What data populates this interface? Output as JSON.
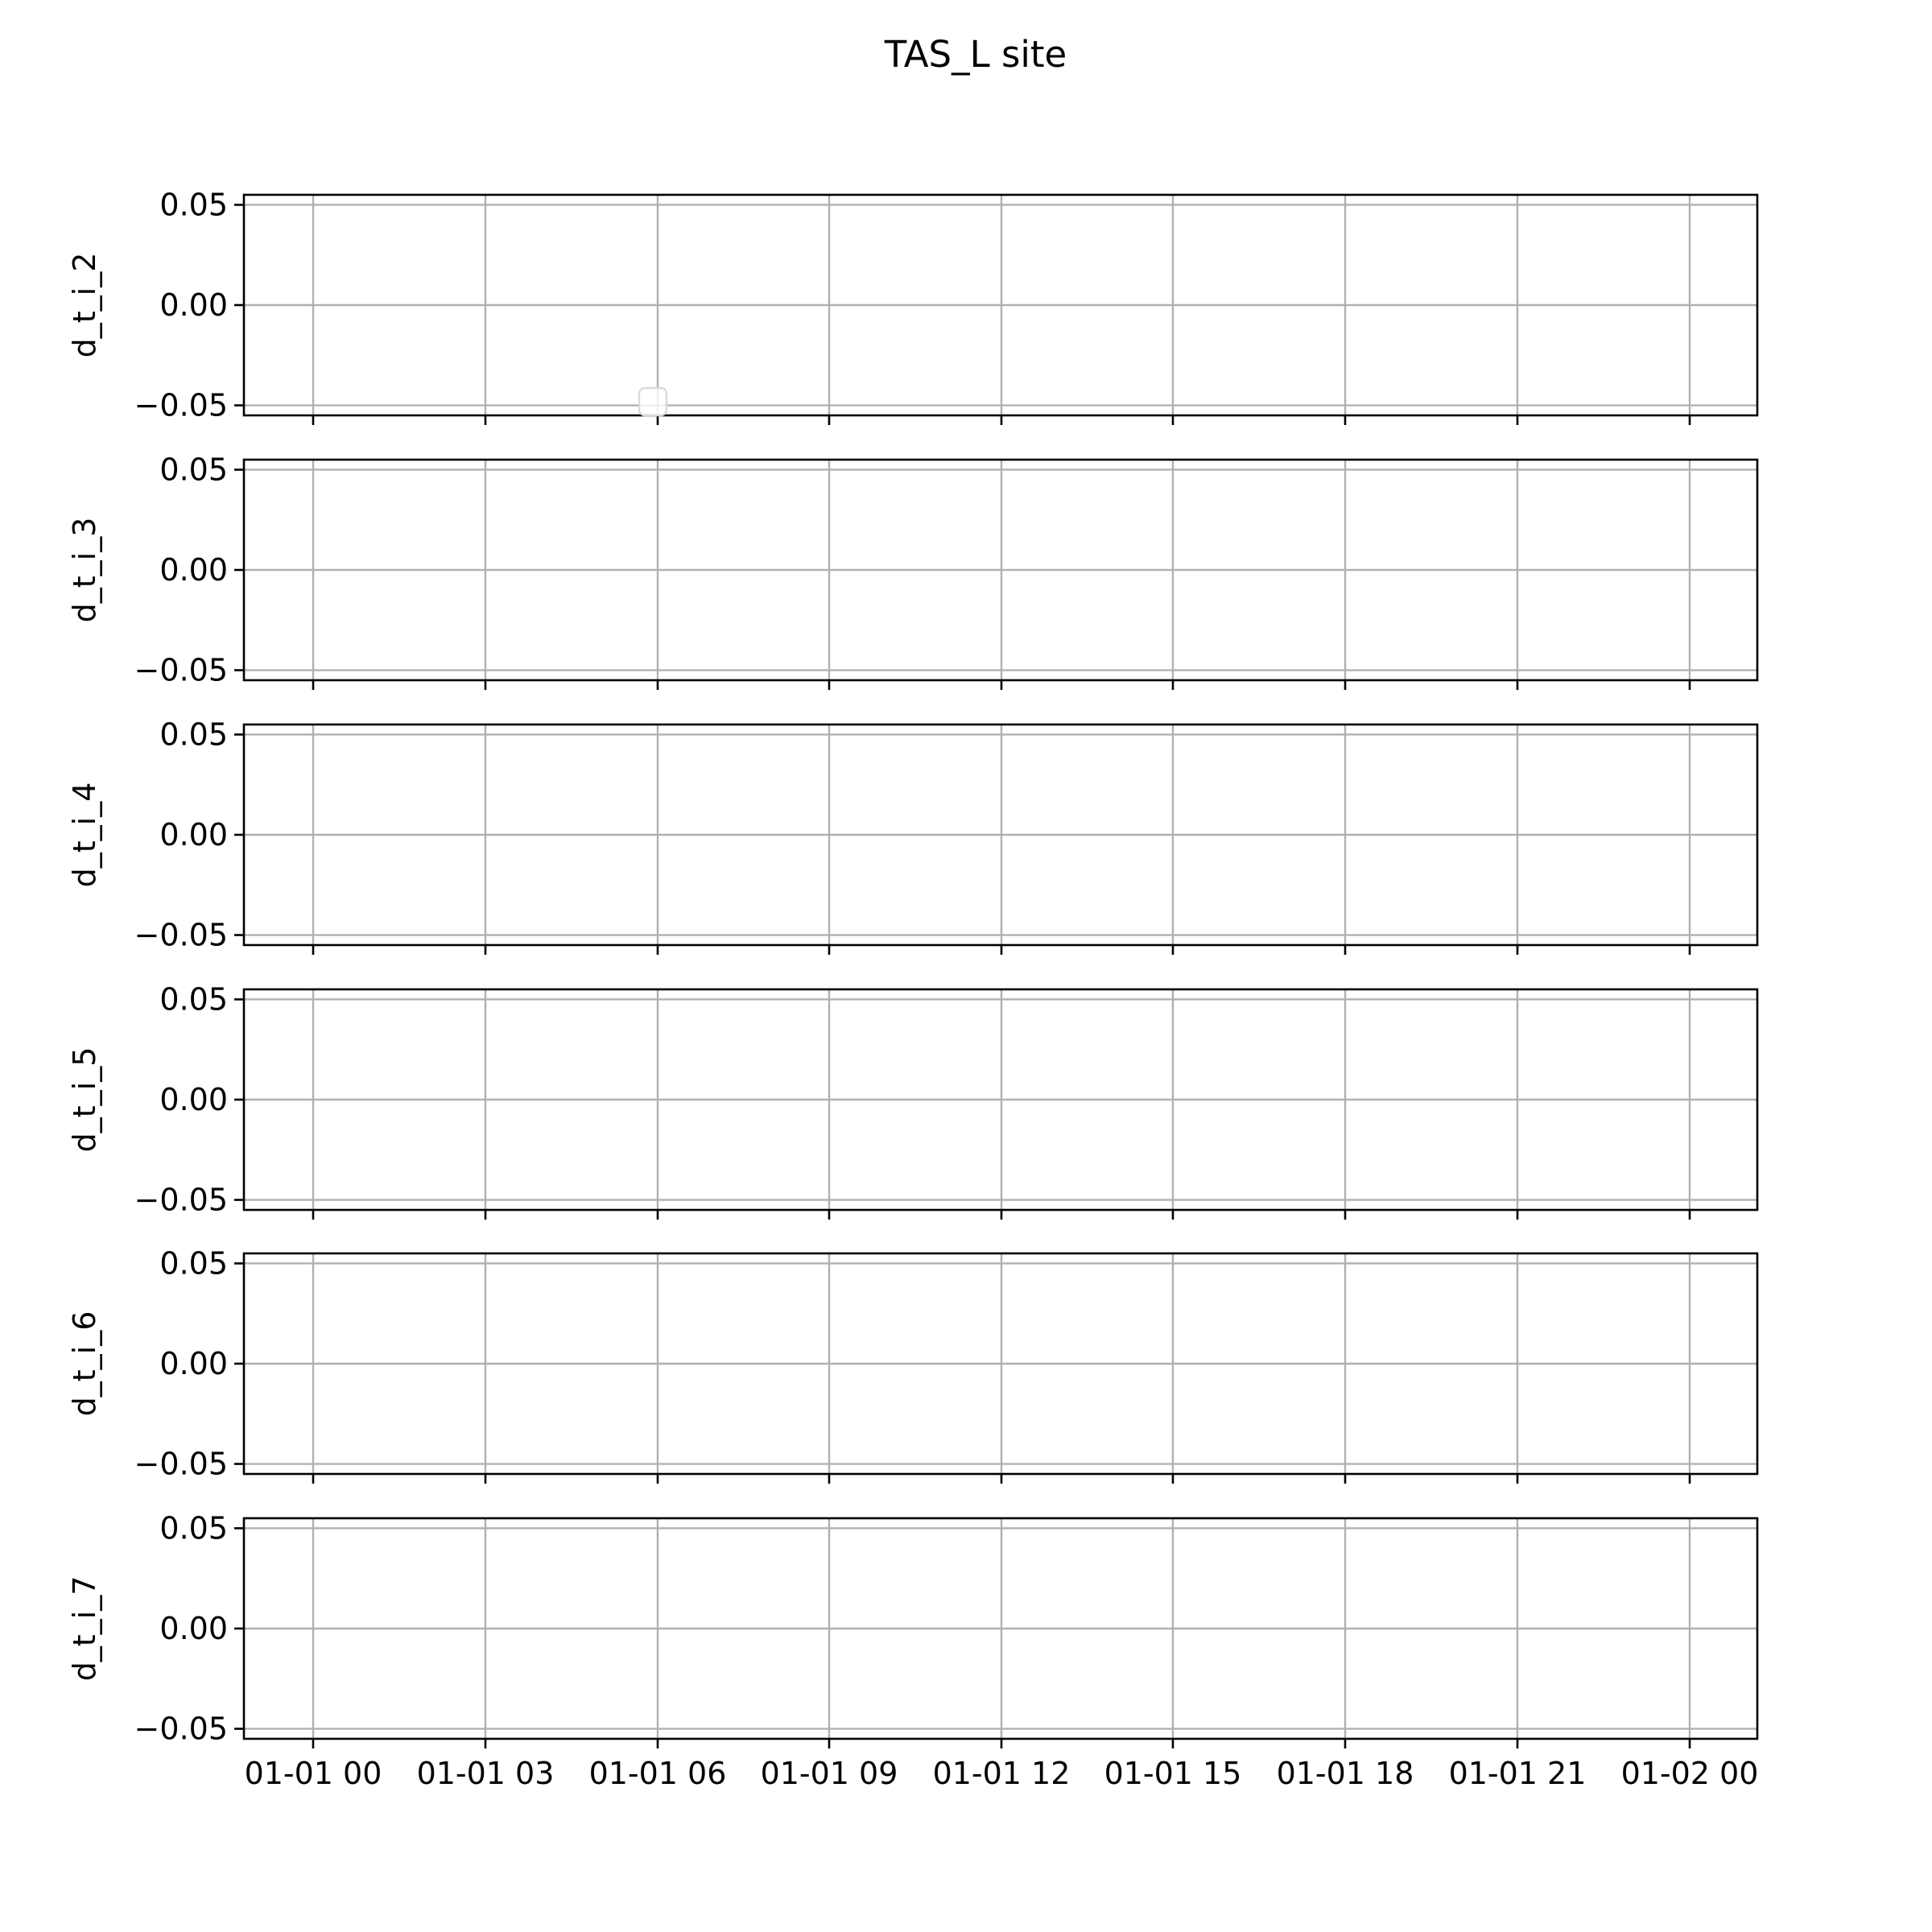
{
  "chart_data": {
    "type": "line",
    "title": "TAS_L site",
    "shared_x": true,
    "x_ticks": [
      "01-01 00",
      "01-01 03",
      "01-01 06",
      "01-01 09",
      "01-01 12",
      "01-01 15",
      "01-01 18",
      "01-01 21",
      "01-02 00"
    ],
    "xlim": [
      "12-31 22:48",
      "01-02 02:24"
    ],
    "y_ticks": [
      "0.05",
      "0.00",
      "−0.05"
    ],
    "y_tick_values": [
      0.05,
      0.0,
      -0.05
    ],
    "ylim": [
      -0.055,
      0.055
    ],
    "grid": true,
    "legend": {
      "placement": "lower center",
      "entries": [],
      "in_panel": "d_t_i_2"
    },
    "panels": [
      {
        "ylabel": "d_t_i_2",
        "series": []
      },
      {
        "ylabel": "d_t_i_3",
        "series": []
      },
      {
        "ylabel": "d_t_i_4",
        "series": []
      },
      {
        "ylabel": "d_t_i_5",
        "series": []
      },
      {
        "ylabel": "d_t_i_6",
        "series": []
      },
      {
        "ylabel": "d_t_i_7",
        "series": []
      }
    ]
  }
}
